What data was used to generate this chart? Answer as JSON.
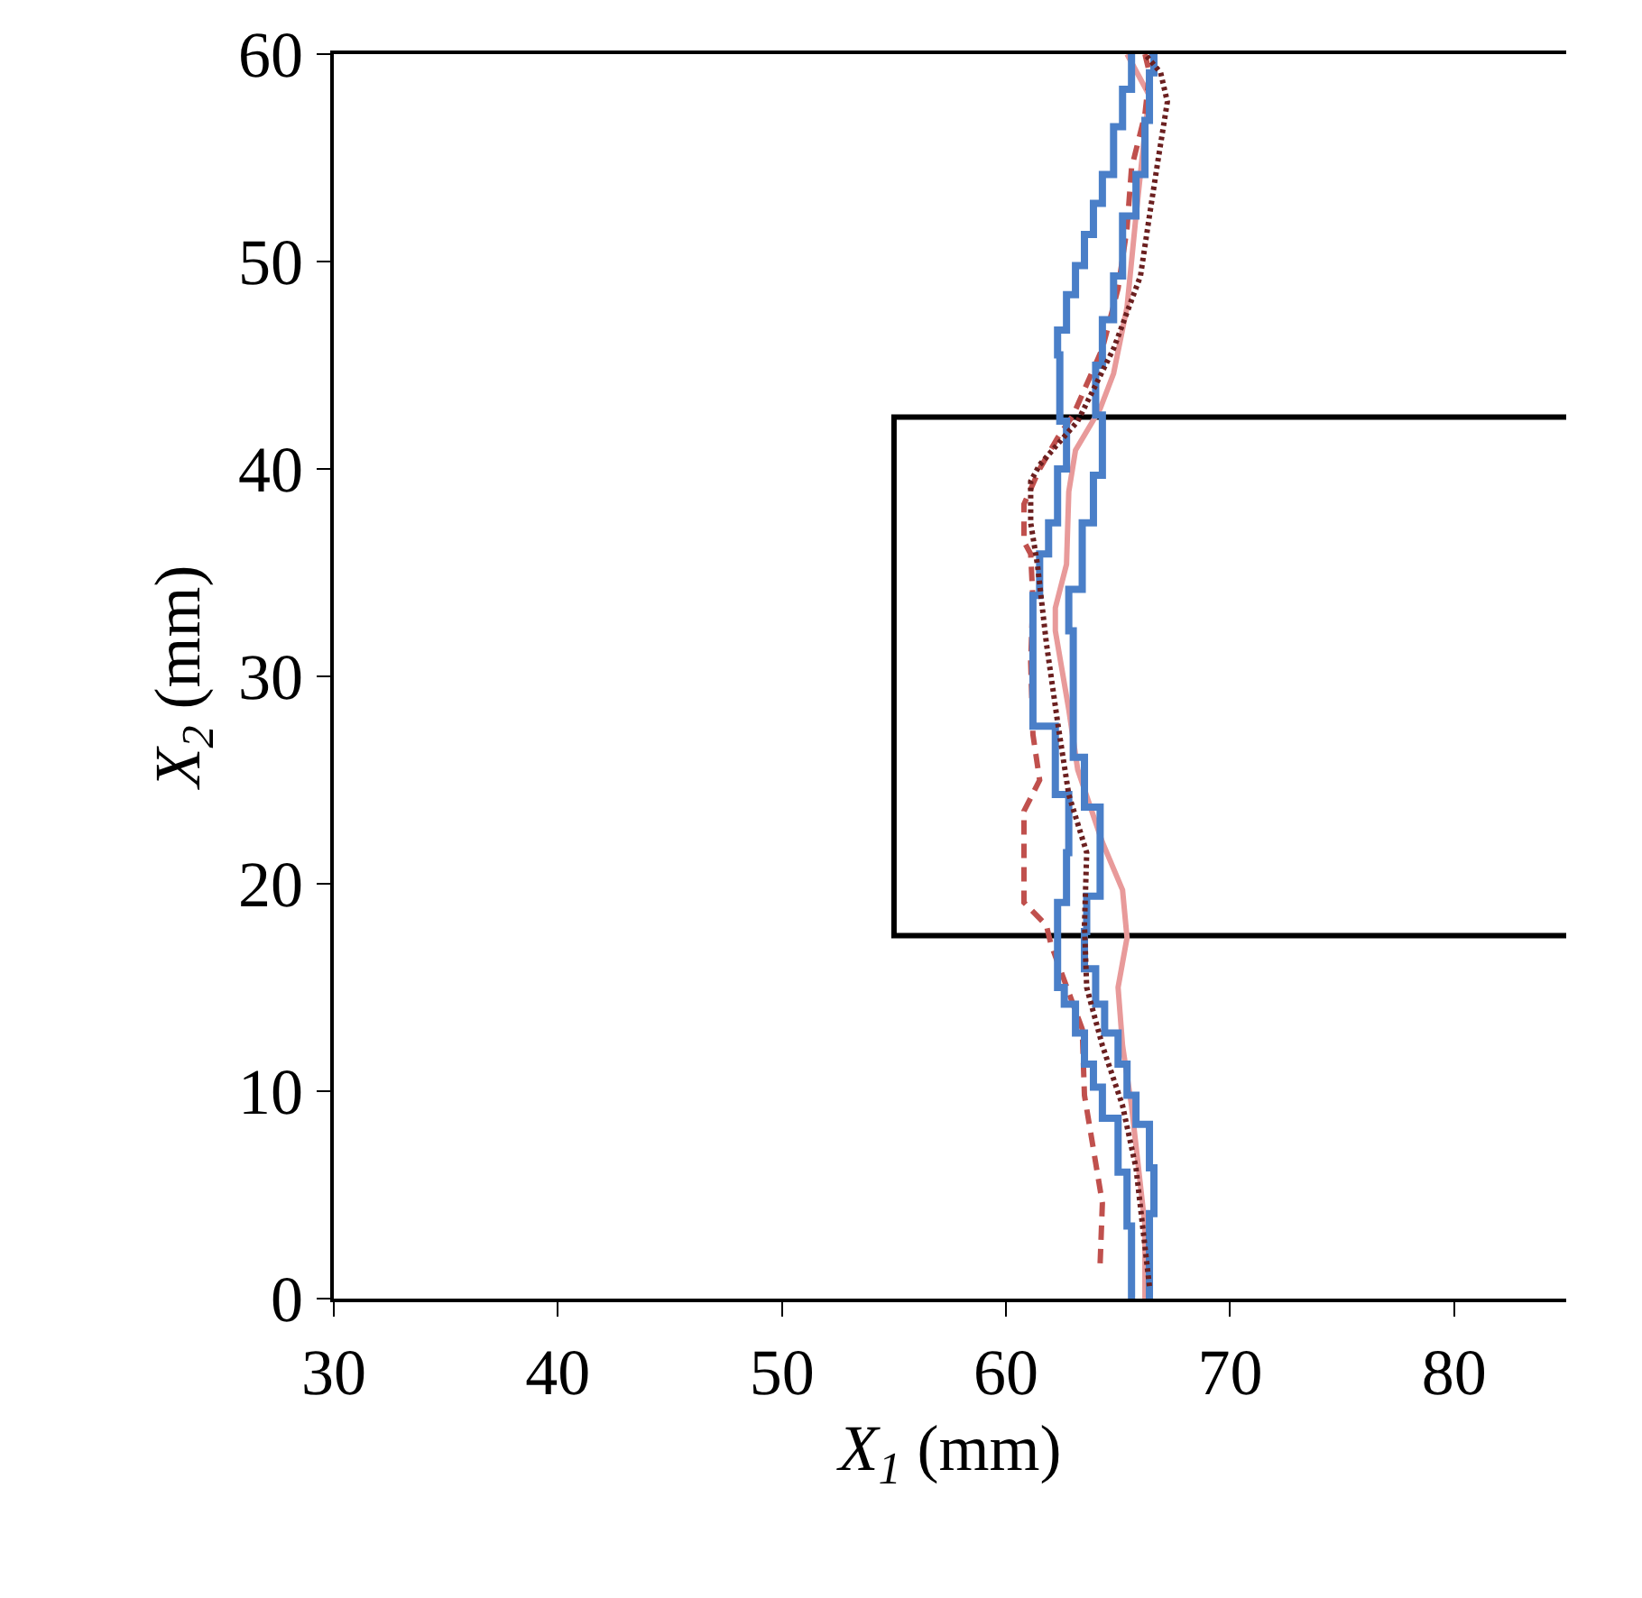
{
  "chart_data": {
    "type": "line",
    "xlabel": "X$_{1}$ (mm)",
    "ylabel": "X$_{2}$ (mm)",
    "xlim": [
      30,
      85
    ],
    "xticks": [
      30,
      40,
      50,
      60,
      70,
      80
    ],
    "ylim": [
      0,
      60
    ],
    "yticks": [
      0,
      10,
      20,
      30,
      40,
      50,
      60
    ],
    "series": [
      {
        "type": "line",
        "color": "#000000",
        "line_style": "solid",
        "x": [
          85,
          55,
          55,
          85
        ],
        "values": [
          42.5,
          42.5,
          17.5,
          17.5
        ]
      },
      {
        "type": "line",
        "color": "#e89a9a",
        "line_style": "solid",
        "x": [
          66.2,
          66.2,
          65.6,
          65.2,
          65.0,
          65.4,
          65.2,
          64.3,
          63.2,
          62.8,
          62.2,
          62.2,
          62.7,
          62.8,
          63.1,
          64.2,
          64.8,
          65.4,
          65.8,
          66.2,
          66.4,
          65.4
        ],
        "values": [
          0,
          3.5,
          9.3,
          12.2,
          15.0,
          17.4,
          19.7,
          22.0,
          25.5,
          28.4,
          32.2,
          33.3,
          35.4,
          38.9,
          40.9,
          42.9,
          44.6,
          47.8,
          52.2,
          56.3,
          58.0,
          60
        ]
      },
      {
        "type": "line",
        "color": "#c0504d",
        "line_style": "dashed",
        "x": [
          64.2,
          64.3,
          63.9,
          63.5,
          63.4,
          62.0,
          61.8,
          60.8,
          60.8,
          61.5,
          61.2,
          61.1,
          61.2,
          61.1,
          60.8,
          60.8,
          61.5,
          62.3,
          63.0,
          64.3,
          65.0,
          65.4,
          65.6,
          66.2,
          66.4,
          66.2
        ],
        "values": [
          1.7,
          4.6,
          7.2,
          9.8,
          13.0,
          17.1,
          18.0,
          19.1,
          23.5,
          25.0,
          27.2,
          30.7,
          33.7,
          35.9,
          36.5,
          38.3,
          40.0,
          41.5,
          42.6,
          45.8,
          48.7,
          51.6,
          54.5,
          57.1,
          59.1,
          60
        ]
      },
      {
        "type": "step",
        "color": "#4a7fc8",
        "line_style": "solid",
        "x": [
          65.6,
          65.4,
          65.0,
          64.3,
          63.9,
          63.5,
          63.1,
          62.6,
          62.3,
          62.3,
          62.7,
          62.8,
          62.2,
          61.2,
          61.2,
          61.5,
          61.9,
          62.3,
          62.7,
          62.4,
          62.3,
          62.7,
          63.1,
          63.5,
          63.9,
          64.3,
          64.8,
          65.2,
          65.6,
          65.6
        ],
        "values": [
          0,
          3.5,
          6.1,
          8.7,
          10.2,
          11.3,
          12.8,
          14.2,
          15.0,
          17.4,
          19.1,
          21.5,
          24.3,
          27.6,
          32.2,
          33.9,
          35.9,
          37.4,
          40.0,
          42.3,
          45.5,
          46.7,
          48.4,
          49.8,
          51.3,
          52.8,
          54.2,
          56.5,
          58.3,
          60
        ]
      },
      {
        "type": "step",
        "color": "#4a7fc8",
        "line_style": "solid",
        "x": [
          66.4,
          66.6,
          66.4,
          65.8,
          65.4,
          65.0,
          64.4,
          64.0,
          63.5,
          63.6,
          64.2,
          64.2,
          63.5,
          63.0,
          62.8,
          63.4,
          63.9,
          64.3,
          64.3,
          64.0,
          64.3,
          64.8,
          65.2,
          65.8,
          66.2,
          66.4,
          66.6,
          66.4
        ],
        "values": [
          0,
          4.1,
          6.3,
          8.4,
          9.8,
          11.3,
          12.8,
          14.2,
          15.9,
          17.7,
          19.4,
          21.5,
          23.7,
          26.1,
          32.2,
          34.2,
          37.4,
          39.7,
          41.5,
          42.6,
          45.0,
          47.2,
          49.3,
          52.2,
          54.2,
          56.8,
          59.1,
          60
        ]
      },
      {
        "type": "line",
        "color": "#6b1f1f",
        "line_style": "dotted",
        "x": [
          66.4,
          65.8,
          65.2,
          64.3,
          63.6,
          63.5,
          63.6,
          62.8,
          62.3,
          61.8,
          61.4,
          61.1,
          61.1,
          61.5,
          63.2,
          64.8,
          66.0,
          66.4,
          66.8,
          67.2,
          66.9,
          66.2
        ],
        "values": [
          0.6,
          6.3,
          9.3,
          12.2,
          15.0,
          18.0,
          21.5,
          24.3,
          27.8,
          31.6,
          35.4,
          37.4,
          39.4,
          40.2,
          42.3,
          45.8,
          49.3,
          52.2,
          55.0,
          57.7,
          59.1,
          60
        ]
      }
    ]
  }
}
